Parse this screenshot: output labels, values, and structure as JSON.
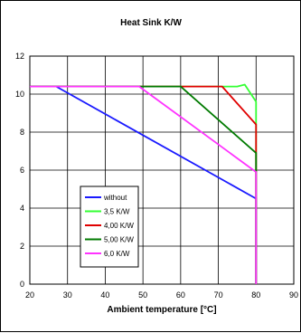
{
  "chart_data": {
    "type": "line",
    "title": "Heat Sink K/W",
    "xlabel": "Ambient temperature [°C]",
    "ylabel": "",
    "xlim": [
      20,
      90
    ],
    "ylim": [
      0,
      12
    ],
    "x_ticks": [
      20,
      30,
      40,
      50,
      60,
      70,
      80,
      90
    ],
    "y_ticks": [
      0,
      2,
      4,
      6,
      8,
      10,
      12
    ],
    "grid": true,
    "legend_position": "bottom-left",
    "series": [
      {
        "name": "without",
        "color": "#1a1aff",
        "x": [
          20,
          27,
          80,
          80
        ],
        "y": [
          10.4,
          10.4,
          4.5,
          0
        ]
      },
      {
        "name": "3,5 K/W",
        "color": "#33ff33",
        "x": [
          20,
          75,
          77,
          80,
          80
        ],
        "y": [
          10.4,
          10.4,
          10.5,
          9.6,
          0
        ]
      },
      {
        "name": "4,00 K/W",
        "color": "#e00000",
        "x": [
          20,
          71,
          80,
          80
        ],
        "y": [
          10.4,
          10.4,
          8.4,
          0
        ]
      },
      {
        "name": "5,00 K/W",
        "color": "#007a00",
        "x": [
          20,
          60,
          80,
          80
        ],
        "y": [
          10.4,
          10.4,
          6.9,
          0
        ]
      },
      {
        "name": "6,0 K/W",
        "color": "#ff33ff",
        "x": [
          20,
          49,
          80,
          80
        ],
        "y": [
          10.4,
          10.4,
          5.9,
          0
        ]
      }
    ]
  }
}
